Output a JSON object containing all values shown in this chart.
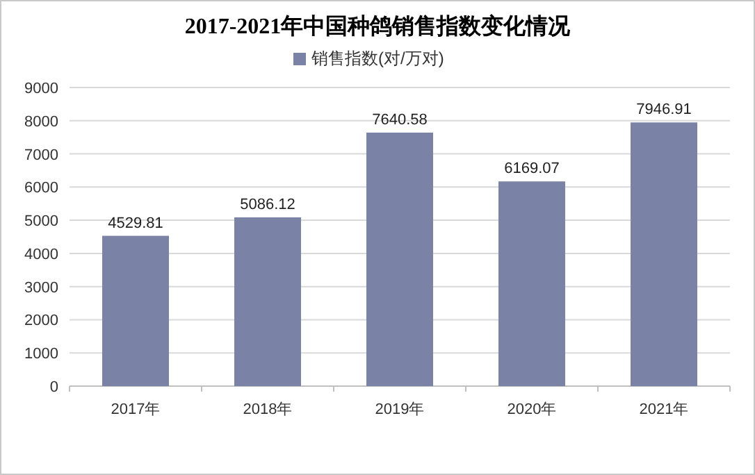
{
  "chart_data": {
    "type": "bar",
    "title": "2017-2021年中国种鸽销售指数变化情况",
    "categories": [
      "2017年",
      "2018年",
      "2019年",
      "2020年",
      "2021年"
    ],
    "series": [
      {
        "name": "销售指数(对/万对)",
        "color": "#7a82a6",
        "values": [
          4529.81,
          5086.12,
          7640.58,
          6169.07,
          7946.91
        ]
      }
    ],
    "ylim": [
      0,
      9000
    ],
    "yticks": [
      0,
      1000,
      2000,
      3000,
      4000,
      5000,
      6000,
      7000,
      8000,
      9000
    ],
    "grid": "y",
    "legend": "top",
    "data_labels": true
  }
}
